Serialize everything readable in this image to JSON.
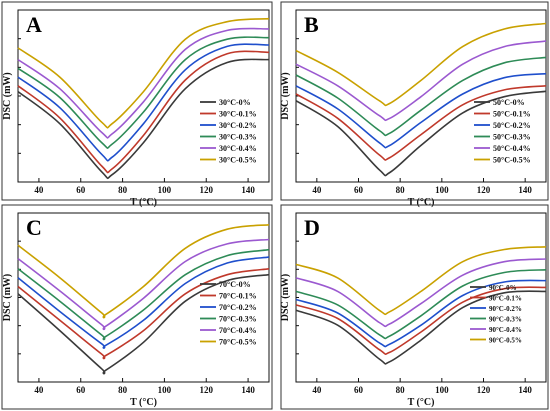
{
  "chart_data": [
    {
      "panel": "A",
      "type": "line",
      "xlabel": "T (°C)",
      "ylabel": "DSC (mW)",
      "xlim": [
        30,
        150
      ],
      "xticks": [
        40,
        60,
        80,
        100,
        120,
        140
      ],
      "legend": "right",
      "series": [
        {
          "name": "30°C-0%",
          "color": "#3a3a3a",
          "x": [
            30,
            50,
            70,
            75,
            90,
            110,
            130,
            150
          ],
          "y": [
            0.6,
            0.38,
            0.05,
            0.03,
            0.25,
            0.62,
            0.8,
            0.82
          ]
        },
        {
          "name": "30°C-0.1%",
          "color": "#c0392b",
          "x": [
            30,
            50,
            70,
            75,
            90,
            110,
            130,
            150
          ],
          "y": [
            0.64,
            0.42,
            0.09,
            0.07,
            0.3,
            0.68,
            0.86,
            0.87
          ]
        },
        {
          "name": "30°C-0.2%",
          "color": "#1f4fcc",
          "x": [
            30,
            50,
            70,
            75,
            90,
            110,
            130,
            150
          ],
          "y": [
            0.7,
            0.49,
            0.17,
            0.15,
            0.38,
            0.75,
            0.91,
            0.92
          ]
        },
        {
          "name": "30°C-0.3%",
          "color": "#2e8b57",
          "x": [
            30,
            50,
            70,
            75,
            90,
            110,
            130,
            150
          ],
          "y": [
            0.76,
            0.56,
            0.25,
            0.24,
            0.46,
            0.82,
            0.96,
            0.97
          ]
        },
        {
          "name": "30°C-0.4%",
          "color": "#9b59d0",
          "x": [
            30,
            50,
            70,
            75,
            90,
            110,
            130,
            150
          ],
          "y": [
            0.82,
            0.62,
            0.32,
            0.31,
            0.53,
            0.89,
            1.02,
            1.03
          ]
        },
        {
          "name": "30°C-0.5%",
          "color": "#c9a100",
          "x": [
            30,
            50,
            70,
            75,
            90,
            110,
            130,
            150
          ],
          "y": [
            0.9,
            0.7,
            0.39,
            0.38,
            0.6,
            0.96,
            1.08,
            1.1
          ]
        }
      ]
    },
    {
      "panel": "B",
      "type": "line",
      "xlabel": "T (°C)",
      "ylabel": "DSC (mW)",
      "xlim": [
        30,
        150
      ],
      "xticks": [
        40,
        60,
        80,
        100,
        120,
        140
      ],
      "legend": "right",
      "series": [
        {
          "name": "50°C-0%",
          "color": "#3a3a3a",
          "x": [
            30,
            50,
            70,
            75,
            90,
            110,
            130,
            150
          ],
          "y": [
            0.55,
            0.36,
            0.04,
            0.02,
            0.22,
            0.46,
            0.58,
            0.62
          ]
        },
        {
          "name": "50°C-0.1%",
          "color": "#c0392b",
          "x": [
            30,
            50,
            70,
            75,
            90,
            110,
            130,
            150
          ],
          "y": [
            0.6,
            0.42,
            0.15,
            0.13,
            0.3,
            0.52,
            0.63,
            0.66
          ]
        },
        {
          "name": "50°C-0.2%",
          "color": "#1f4fcc",
          "x": [
            30,
            50,
            70,
            75,
            90,
            110,
            130,
            150
          ],
          "y": [
            0.66,
            0.49,
            0.24,
            0.22,
            0.39,
            0.6,
            0.72,
            0.75
          ]
        },
        {
          "name": "50°C-0.3%",
          "color": "#2e8b57",
          "x": [
            30,
            50,
            70,
            75,
            90,
            110,
            130,
            150
          ],
          "y": [
            0.74,
            0.57,
            0.33,
            0.31,
            0.48,
            0.7,
            0.83,
            0.87
          ]
        },
        {
          "name": "50°C-0.4%",
          "color": "#9b59d0",
          "x": [
            30,
            50,
            70,
            75,
            90,
            110,
            130,
            150
          ],
          "y": [
            0.82,
            0.66,
            0.44,
            0.42,
            0.58,
            0.82,
            0.95,
            0.99
          ]
        },
        {
          "name": "50°C-0.5%",
          "color": "#c9a100",
          "x": [
            30,
            50,
            70,
            75,
            90,
            110,
            130,
            150
          ],
          "y": [
            0.92,
            0.76,
            0.55,
            0.53,
            0.7,
            0.95,
            1.08,
            1.12
          ]
        }
      ]
    },
    {
      "panel": "C",
      "type": "line",
      "xlabel": "T (°C)",
      "ylabel": "DSC (mW)",
      "xlim": [
        30,
        150
      ],
      "xticks": [
        40,
        60,
        80,
        100,
        120,
        140
      ],
      "legend": "right",
      "series": [
        {
          "name": "70°C-0%",
          "color": "#3a3a3a",
          "x": [
            30,
            50,
            70,
            72,
            90,
            110,
            130,
            150
          ],
          "y": [
            0.55,
            0.3,
            0.04,
            0.03,
            0.22,
            0.5,
            0.64,
            0.68
          ]
        },
        {
          "name": "70°C-0.1%",
          "color": "#c0392b",
          "x": [
            30,
            50,
            70,
            72,
            90,
            110,
            130,
            150
          ],
          "y": [
            0.6,
            0.37,
            0.14,
            0.13,
            0.3,
            0.55,
            0.68,
            0.72
          ]
        },
        {
          "name": "70°C-0.2%",
          "color": "#1f4fcc",
          "x": [
            30,
            50,
            70,
            72,
            90,
            110,
            130,
            150
          ],
          "y": [
            0.66,
            0.43,
            0.21,
            0.2,
            0.37,
            0.62,
            0.76,
            0.8
          ]
        },
        {
          "name": "70°C-0.3%",
          "color": "#2e8b57",
          "x": [
            30,
            50,
            70,
            72,
            90,
            110,
            130,
            150
          ],
          "y": [
            0.72,
            0.5,
            0.27,
            0.26,
            0.44,
            0.68,
            0.81,
            0.85
          ]
        },
        {
          "name": "70°C-0.4%",
          "color": "#9b59d0",
          "x": [
            30,
            50,
            70,
            72,
            90,
            110,
            130,
            150
          ],
          "y": [
            0.79,
            0.57,
            0.34,
            0.33,
            0.52,
            0.77,
            0.89,
            0.92
          ]
        },
        {
          "name": "70°C-0.5%",
          "color": "#c9a100",
          "x": [
            30,
            50,
            70,
            72,
            90,
            110,
            130,
            150
          ],
          "y": [
            0.88,
            0.66,
            0.42,
            0.41,
            0.6,
            0.86,
            0.99,
            1.02
          ]
        }
      ]
    },
    {
      "panel": "D",
      "type": "line",
      "xlabel": "T (°C)",
      "ylabel": "DSC (mW)",
      "xlim": [
        30,
        150
      ],
      "xticks": [
        40,
        60,
        80,
        100,
        120,
        140
      ],
      "legend": "right",
      "series": [
        {
          "name": "90°C-0%",
          "color": "#3a3a3a",
          "x": [
            30,
            50,
            70,
            75,
            90,
            110,
            130,
            150
          ],
          "y": [
            0.48,
            0.37,
            0.12,
            0.1,
            0.26,
            0.5,
            0.61,
            0.62
          ]
        },
        {
          "name": "90°C-0.1%",
          "color": "#c0392b",
          "x": [
            30,
            50,
            70,
            75,
            90,
            110,
            130,
            150
          ],
          "y": [
            0.52,
            0.42,
            0.19,
            0.17,
            0.32,
            0.54,
            0.64,
            0.65
          ]
        },
        {
          "name": "90°C-0.2%",
          "color": "#1f4fcc",
          "x": [
            30,
            50,
            70,
            75,
            90,
            110,
            130,
            150
          ],
          "y": [
            0.56,
            0.46,
            0.24,
            0.23,
            0.37,
            0.59,
            0.69,
            0.7
          ]
        },
        {
          "name": "90°C-0.3%",
          "color": "#2e8b57",
          "x": [
            30,
            50,
            70,
            75,
            90,
            110,
            130,
            150
          ],
          "y": [
            0.62,
            0.52,
            0.3,
            0.29,
            0.44,
            0.66,
            0.76,
            0.78
          ]
        },
        {
          "name": "90°C-0.4%",
          "color": "#9b59d0",
          "x": [
            30,
            50,
            70,
            75,
            90,
            110,
            130,
            150
          ],
          "y": [
            0.72,
            0.62,
            0.39,
            0.38,
            0.53,
            0.74,
            0.84,
            0.86
          ]
        },
        {
          "name": "90°C-0.5%",
          "color": "#c9a100",
          "x": [
            30,
            50,
            70,
            75,
            90,
            110,
            130,
            150
          ],
          "y": [
            0.82,
            0.72,
            0.48,
            0.47,
            0.62,
            0.84,
            0.93,
            0.95
          ]
        }
      ]
    }
  ]
}
